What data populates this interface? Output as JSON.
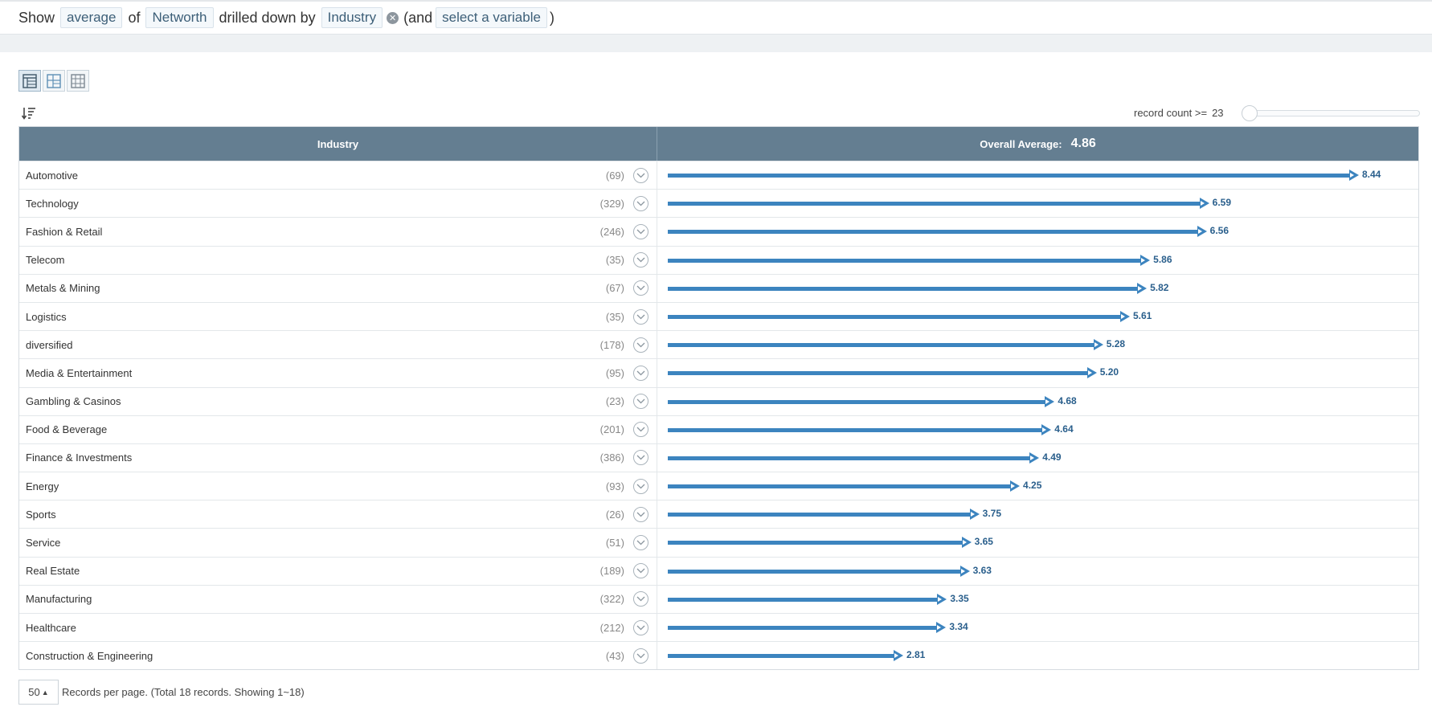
{
  "query": {
    "show_label": "Show",
    "aggregate": "average",
    "of_label": "of",
    "measure": "Networth",
    "drilled_label": "drilled down by",
    "dimension": "Industry",
    "and_label": "(and",
    "select_variable": "select a variable",
    "close_paren": ")"
  },
  "filter": {
    "label": "record count >=",
    "value": "23",
    "slider_fraction": 0
  },
  "table": {
    "col_industry": "Industry",
    "col_average_label": "Overall Average:",
    "overall_average": "4.86"
  },
  "chart_data": {
    "type": "bar",
    "categories": [
      "Automotive",
      "Technology",
      "Fashion & Retail",
      "Telecom",
      "Metals & Mining",
      "Logistics",
      "diversified",
      "Media & Entertainment",
      "Gambling & Casinos",
      "Food & Beverage",
      "Finance & Investments",
      "Energy",
      "Sports",
      "Service",
      "Real Estate",
      "Manufacturing",
      "Healthcare",
      "Construction & Engineering"
    ],
    "counts": [
      "(69)",
      "(329)",
      "(246)",
      "(35)",
      "(67)",
      "(35)",
      "(178)",
      "(95)",
      "(23)",
      "(201)",
      "(386)",
      "(93)",
      "(26)",
      "(51)",
      "(189)",
      "(322)",
      "(212)",
      "(43)"
    ],
    "values": [
      8.44,
      6.59,
      6.56,
      5.86,
      5.82,
      5.61,
      5.28,
      5.2,
      4.68,
      4.64,
      4.49,
      4.25,
      3.75,
      3.65,
      3.63,
      3.35,
      3.34,
      2.81
    ],
    "value_labels": [
      "8.44",
      "6.59",
      "6.56",
      "5.86",
      "5.82",
      "5.61",
      "5.28",
      "5.20",
      "4.68",
      "4.64",
      "4.49",
      "4.25",
      "3.75",
      "3.65",
      "3.63",
      "3.35",
      "3.34",
      "2.81"
    ],
    "xlim": [
      0,
      8.44
    ],
    "bar_color": "#3c84bf"
  },
  "pager": {
    "per_page": "50",
    "info": "Records per page. (Total 18 records. Showing 1~18)"
  }
}
